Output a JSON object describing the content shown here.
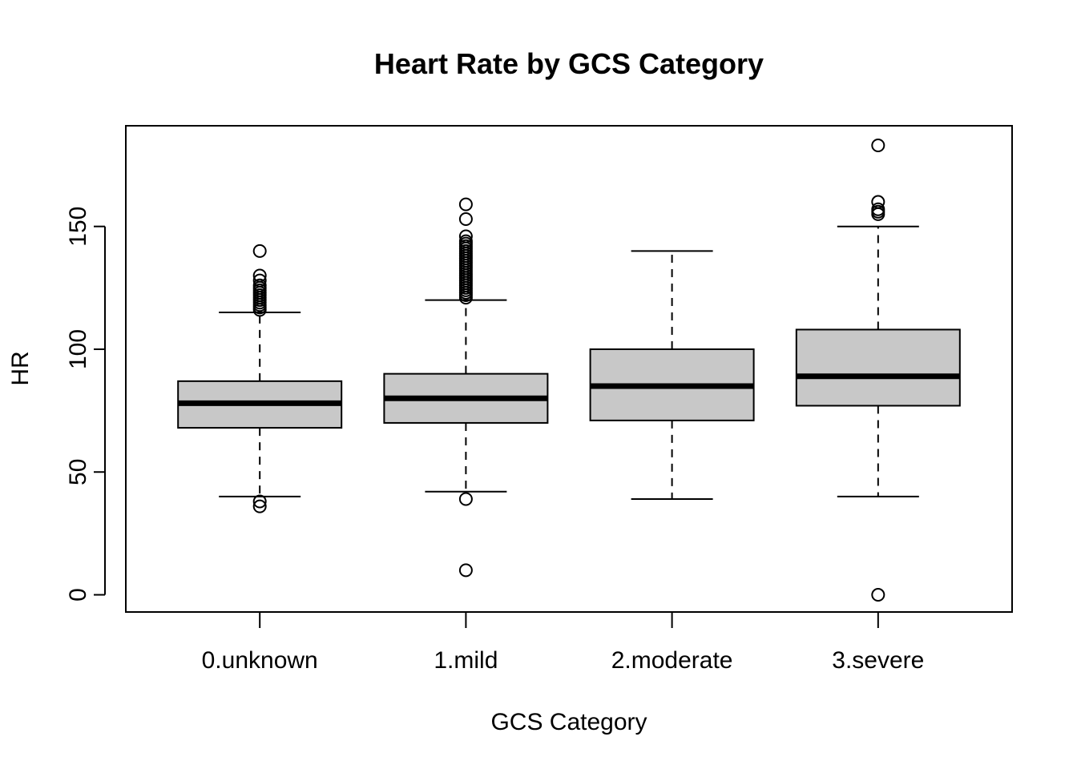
{
  "chart_data": {
    "type": "boxplot",
    "title": "Heart Rate by GCS Category",
    "xlabel": "GCS Category",
    "ylabel": "HR",
    "ylim": [
      -7,
      191
    ],
    "yticks": [
      0,
      50,
      100,
      150
    ],
    "grid": false,
    "legend": "none",
    "box_fill": "#c8c8c8",
    "categories": [
      "0.unknown",
      "1.mild",
      "2.moderate",
      "3.severe"
    ],
    "boxes": [
      {
        "category": "0.unknown",
        "whisker_low": 40,
        "q1": 68,
        "median": 78,
        "q3": 87,
        "whisker_high": 115,
        "outliers": [
          116,
          117,
          118,
          119,
          120,
          121,
          122,
          123,
          124,
          125,
          126,
          128,
          130,
          140,
          38,
          36
        ]
      },
      {
        "category": "1.mild",
        "whisker_low": 42,
        "q1": 70,
        "median": 80,
        "q3": 90,
        "whisker_high": 120,
        "outliers": [
          121,
          122,
          123,
          124,
          125,
          126,
          127,
          128,
          129,
          130,
          131,
          132,
          133,
          134,
          135,
          136,
          137,
          138,
          139,
          140,
          141,
          142,
          143,
          144,
          146,
          153,
          159,
          39,
          10
        ]
      },
      {
        "category": "2.moderate",
        "whisker_low": 39,
        "q1": 71,
        "median": 85,
        "q3": 100,
        "whisker_high": 140,
        "outliers": []
      },
      {
        "category": "3.severe",
        "whisker_low": 40,
        "q1": 77,
        "median": 89,
        "q3": 108,
        "whisker_high": 150,
        "outliers": [
          155,
          156,
          157,
          160,
          183,
          0
        ]
      }
    ]
  }
}
